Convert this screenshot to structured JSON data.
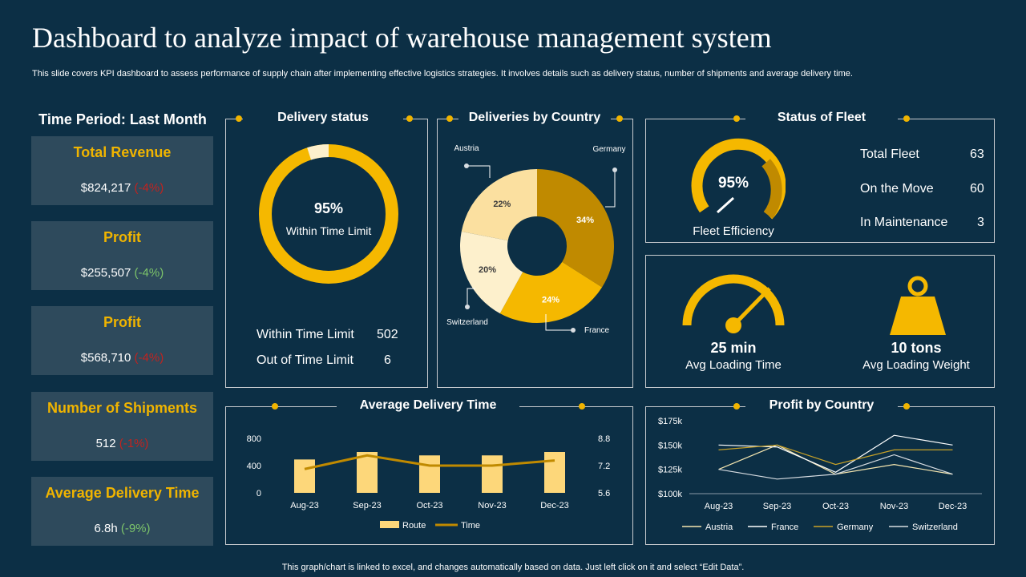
{
  "header": {
    "title": "Dashboard to analyze impact of warehouse management system",
    "subtitle": "This slide covers KPI dashboard to assess performance of supply chain after implementing effective logistics strategies. It involves details such as delivery status, number of shipments and average delivery time.",
    "footer": "This graph/chart is linked to excel,  and changes automatically based on data. Just left click on it and select “Edit Data”."
  },
  "sidebar": {
    "period_label": "Time Period: Last Month",
    "kpis": [
      {
        "title": "Total Revenue",
        "value": "$824,217",
        "change": "(-4%)",
        "change_type": "negative"
      },
      {
        "title": "Profit",
        "value": "$255,507",
        "change": "(-4%)",
        "change_type": "positive"
      },
      {
        "title": "Profit",
        "value": "$568,710",
        "change": "(-4%)",
        "change_type": "negative"
      },
      {
        "title": "Number of Shipments",
        "value": "512",
        "change": "(-1%)",
        "change_type": "negative"
      },
      {
        "title": "Average Delivery Time",
        "value": "6.8h",
        "change": "(-9%)",
        "change_type": "positive"
      }
    ]
  },
  "delivery_status": {
    "title": "Delivery status",
    "center_value": "95%",
    "center_label": "Within Time Limit",
    "rows": [
      {
        "label": "Within Time Limit",
        "value": "502"
      },
      {
        "label": "Out of Time Limit",
        "value": "6"
      }
    ]
  },
  "fleet": {
    "title": "Status of Fleet",
    "gauge_value": "95%",
    "gauge_label": "Fleet Efficiency",
    "rows": [
      {
        "label": "Total Fleet",
        "value": "63"
      },
      {
        "label": "On the Move",
        "value": "60"
      },
      {
        "label": "In Maintenance",
        "value": "3"
      }
    ]
  },
  "loading": {
    "time_value": "25 min",
    "time_label": "Avg Loading Time",
    "weight_value": "10 tons",
    "weight_label": "Avg Loading Weight"
  },
  "colors": {
    "background": "#0c2f45",
    "accent": "#f0b400",
    "card": "#2e4a5c",
    "negative": "#c0231f",
    "positive": "#7cc46a"
  },
  "chart_data": [
    {
      "type": "pie",
      "title": "Deliveries by Country",
      "categories": [
        "Austria",
        "Germany",
        "France",
        "Switzerland"
      ],
      "values": [
        22,
        34,
        24,
        20
      ],
      "labels": [
        "22%",
        "34%",
        "24%",
        "20%"
      ],
      "colors": [
        "#fbe0a0",
        "#c08a00",
        "#f5b800",
        "#fdf0cc"
      ]
    },
    {
      "type": "bar",
      "title": "Average Delivery Time",
      "categories": [
        "Aug-23",
        "Sep-23",
        "Oct-23",
        "Nov-23",
        "Dec-23"
      ],
      "series": [
        {
          "name": "Route",
          "kind": "bar",
          "axis": "left",
          "values": [
            490,
            600,
            550,
            550,
            600
          ]
        },
        {
          "name": "Time",
          "kind": "line",
          "axis": "right",
          "values": [
            7.0,
            7.8,
            7.2,
            7.2,
            7.5
          ]
        }
      ],
      "y_left": {
        "min": 0,
        "max": 800,
        "ticks": [
          "0",
          "400",
          "800"
        ]
      },
      "y_right": {
        "min": 5.6,
        "max": 8.8,
        "ticks": [
          "5.6",
          "7.2",
          "8.8"
        ]
      }
    },
    {
      "type": "line",
      "title": "Profit by Country",
      "categories": [
        "Aug-23",
        "Sep-23",
        "Oct-23",
        "Nov-23",
        "Dec-23"
      ],
      "series": [
        {
          "name": "Austria",
          "color": "#f5e6b0",
          "values": [
            125,
            150,
            120,
            130,
            120
          ]
        },
        {
          "name": "France",
          "color": "#ffffff",
          "values": [
            150,
            148,
            122,
            160,
            150
          ]
        },
        {
          "name": "Germany",
          "color": "#c9a227",
          "values": [
            145,
            150,
            130,
            145,
            145
          ]
        },
        {
          "name": "Switzerland",
          "color": "#d8dde2",
          "values": [
            125,
            115,
            120,
            140,
            120
          ]
        }
      ],
      "ylim": [
        100,
        175
      ],
      "ticks": [
        "$100k",
        "$125k",
        "$150k",
        "$175k"
      ]
    }
  ]
}
